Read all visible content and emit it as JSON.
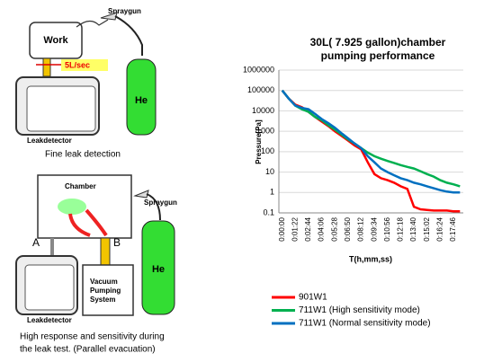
{
  "diagram": {
    "top": {
      "work": "Work",
      "spraygun": "Spraygun",
      "flow": "5L/sec",
      "leakdetector": "Leakdetector",
      "gas": "He",
      "caption": "Fine leak detection"
    },
    "bottom": {
      "chamber": "Chamber",
      "spraygun": "Spraygun",
      "valve_a": "A",
      "valve_b": "B",
      "leakdetector": "Leakdetector",
      "pump": [
        "Vacuum",
        "Pumping",
        "System"
      ],
      "gas": "He",
      "caption": [
        "High response and sensitivity during",
        "the leak test. (Parallel evacuation)"
      ]
    }
  },
  "chart_data": {
    "type": "line",
    "title": [
      "30L( 7.925 gallon)chamber",
      "pumping performance"
    ],
    "x_label": "T(h,mm,ss)",
    "y_label": "Pressure[Pa]",
    "log_y": true,
    "grid": true,
    "legend": "bottom",
    "categories": [
      "0:00:00",
      null,
      "0:01:22",
      null,
      "0:02:44",
      null,
      "0:04:06",
      null,
      "0:05:28",
      null,
      "0:06:50",
      null,
      "0:08:12",
      null,
      "0:09:34",
      null,
      "0:10:56",
      null,
      "0:12:18",
      null,
      "0:13:40",
      null,
      "0:15:02",
      null,
      "0:16:24",
      null,
      "0:17:46",
      null
    ],
    "ylim": [
      0.1,
      1000000
    ],
    "yticks": [
      1000000,
      100000,
      10000,
      1000,
      100,
      10,
      1,
      0.1
    ],
    "series": [
      {
        "name": "901W1",
        "color": "#ff0000",
        "values": [
          100000,
          40000,
          20000,
          15000,
          9000,
          5000,
          3000,
          1800,
          1000,
          600,
          350,
          200,
          130,
          30,
          8,
          5,
          4,
          3,
          2,
          1.5,
          0.2,
          0.15,
          0.14,
          0.13,
          0.13,
          0.13,
          0.12,
          0.12
        ]
      },
      {
        "name": "711W1 (High sensitivity mode)",
        "color": "#00b050",
        "values": [
          100000,
          40000,
          18000,
          12000,
          9000,
          5000,
          3500,
          2000,
          1200,
          700,
          400,
          250,
          150,
          90,
          60,
          45,
          35,
          28,
          22,
          18,
          15,
          11,
          8,
          6,
          4,
          3,
          2.5,
          2
        ]
      },
      {
        "name": "711W1 (Normal sensitivity mode)",
        "color": "#0070c0",
        "values": [
          100000,
          40000,
          18000,
          14000,
          12000,
          7000,
          4000,
          2500,
          1500,
          800,
          450,
          250,
          150,
          60,
          30,
          15,
          10,
          7,
          5,
          4,
          3,
          2.5,
          2,
          1.6,
          1.3,
          1.1,
          1,
          1
        ]
      }
    ]
  }
}
